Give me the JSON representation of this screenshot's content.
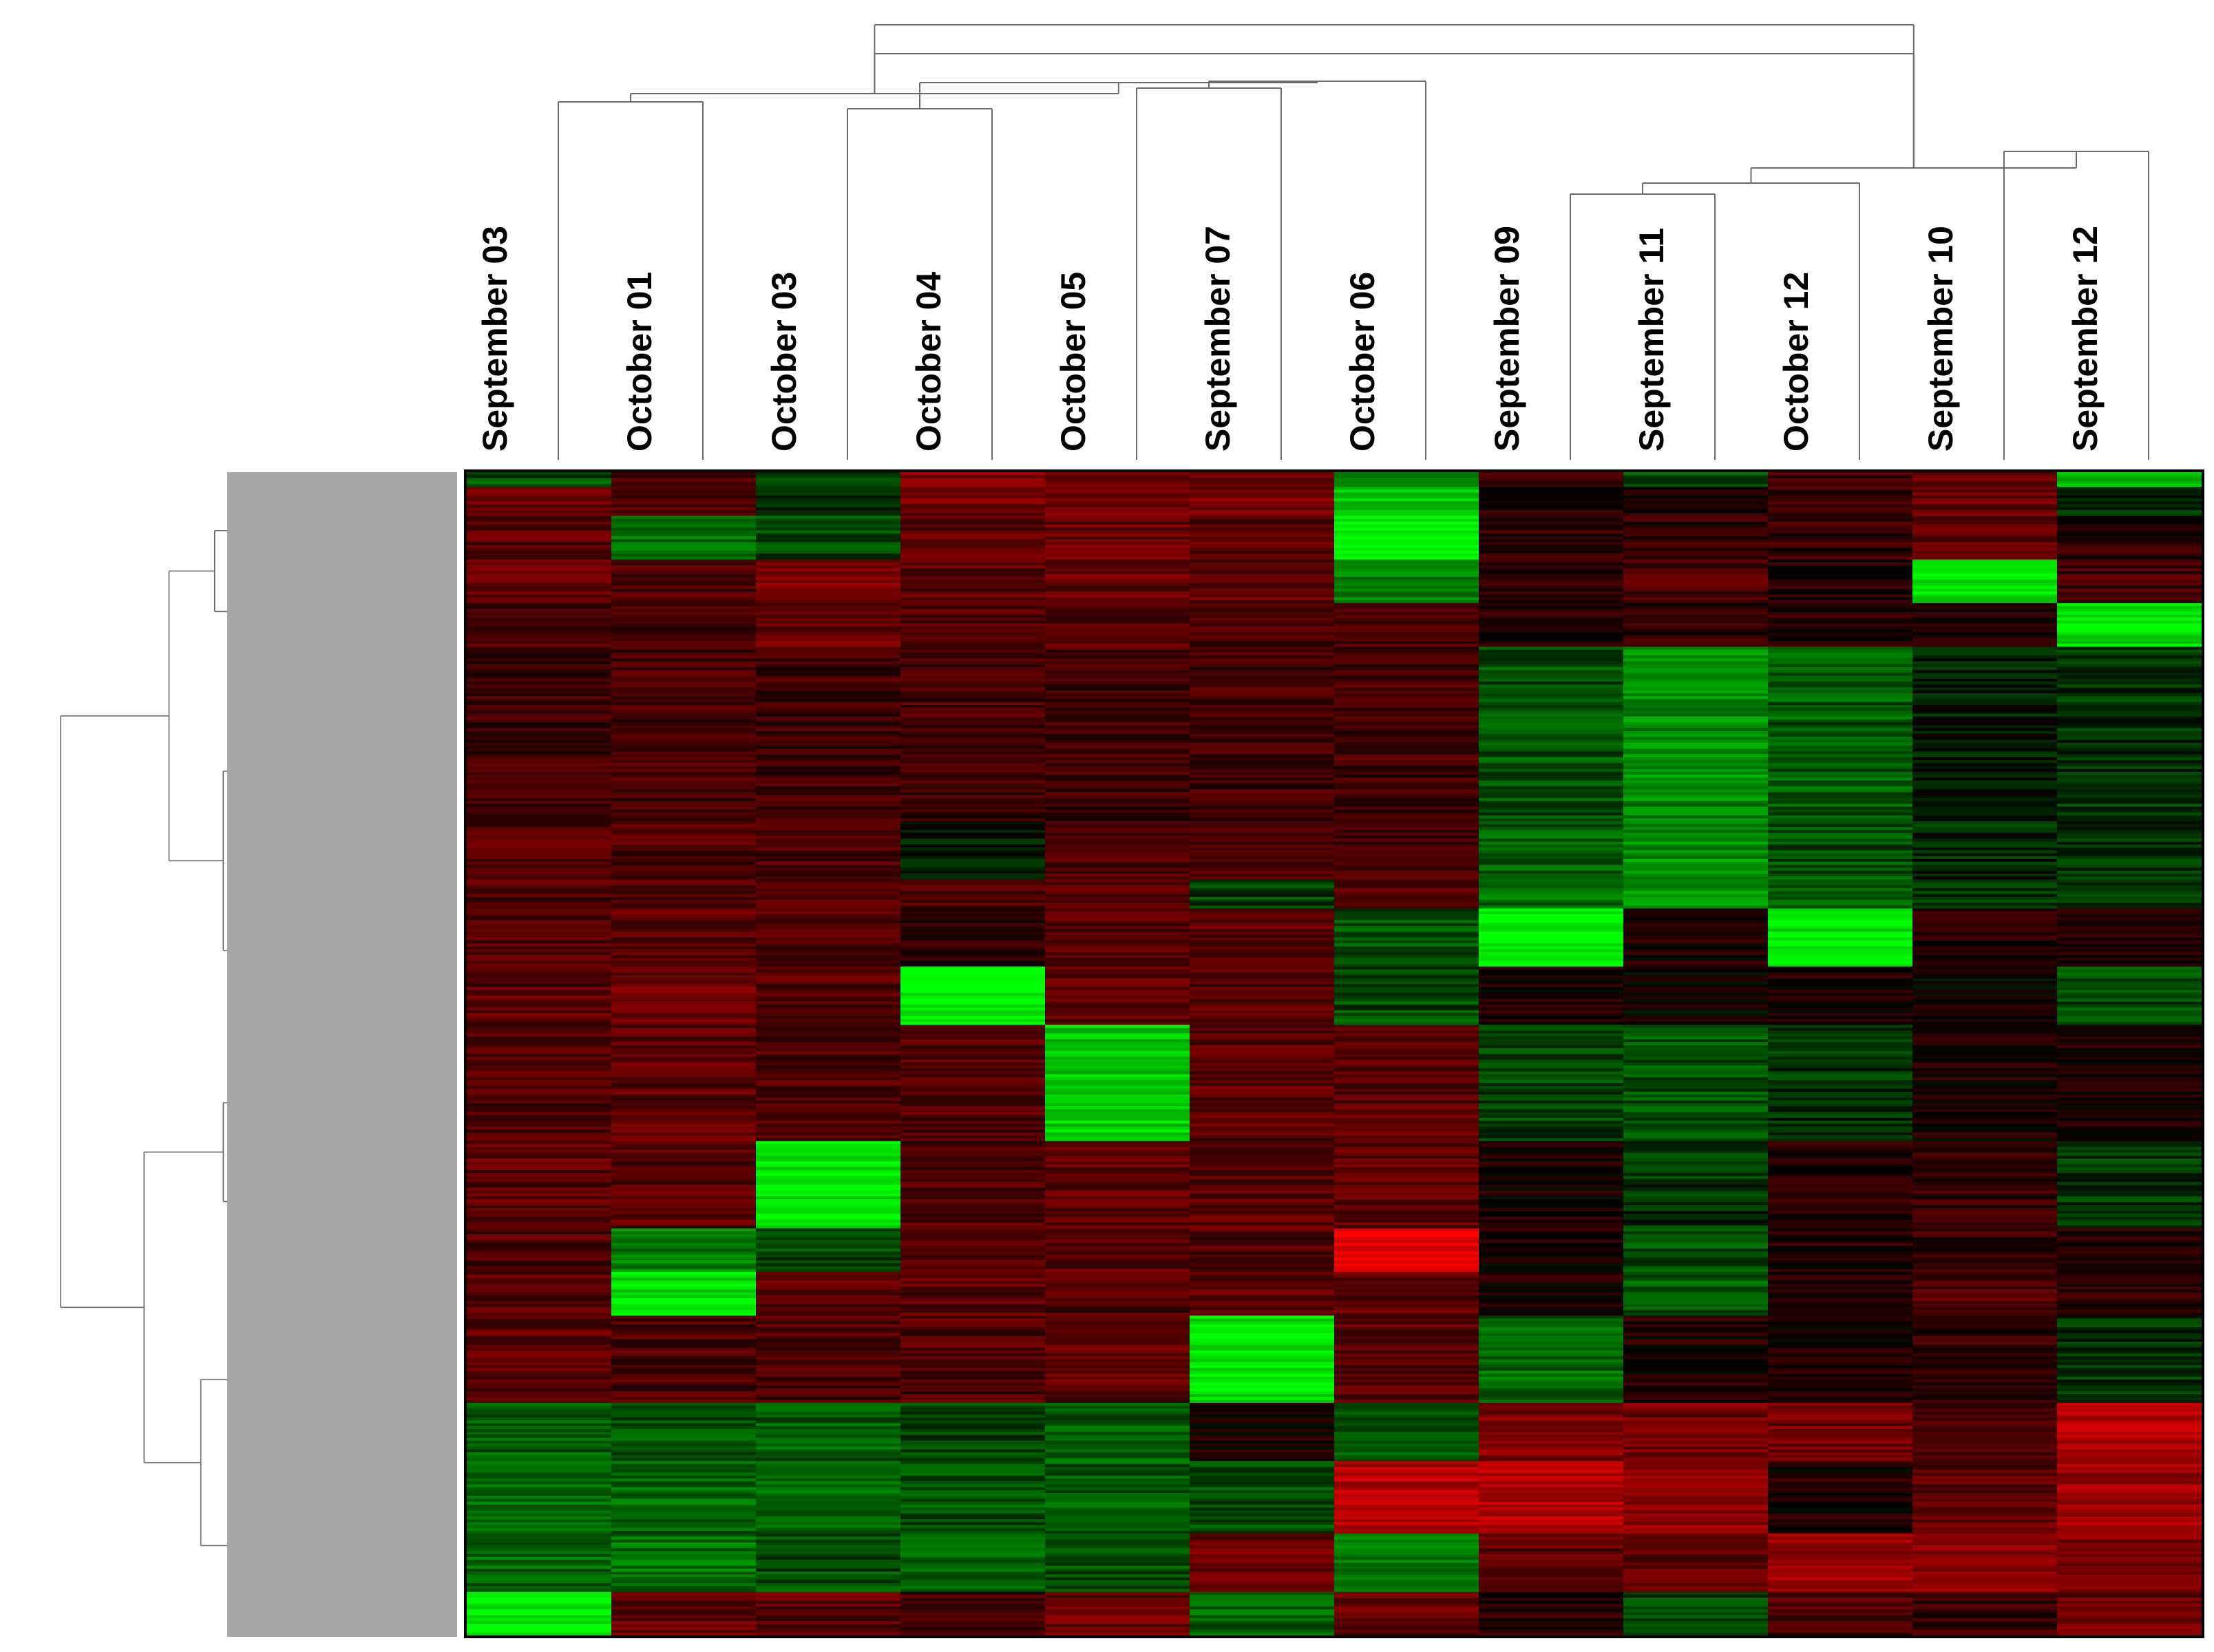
{
  "chart_data": {
    "type": "heatmap",
    "title": "",
    "xlabel": "",
    "ylabel": "",
    "columns": [
      "September 03",
      "October 01",
      "October 03",
      "October 04",
      "October 05",
      "September 07",
      "October 06",
      "September 09",
      "September 11",
      "October 12",
      "September 10",
      "September 12"
    ],
    "row_count": 400,
    "color_scale": {
      "low": "#00ff00",
      "mid": "#000000",
      "high": "#ff0000"
    },
    "value_range": [
      -1,
      1
    ],
    "column_dendrogram": true,
    "row_dendrogram": true,
    "legend": "none",
    "grid": false,
    "row_blocks": [
      {
        "rows": [
          0,
          4
        ],
        "values": [
          -0.3,
          0.3,
          -0.2,
          0.5,
          0.45,
          0.45,
          -0.6,
          0.2,
          -0.3,
          0.25,
          0.4,
          -0.7
        ]
      },
      {
        "rows": [
          5,
          14
        ],
        "values": [
          0.4,
          0.3,
          -0.2,
          0.45,
          0.45,
          0.45,
          -0.8,
          0.1,
          0.15,
          0.25,
          0.4,
          -0.2
        ]
      },
      {
        "rows": [
          15,
          29
        ],
        "values": [
          0.35,
          -0.4,
          -0.3,
          0.35,
          0.4,
          0.35,
          -0.95,
          0.2,
          0.2,
          0.2,
          0.35,
          0.15
        ]
      },
      {
        "rows": [
          30,
          44
        ],
        "values": [
          0.35,
          0.3,
          0.5,
          0.35,
          0.4,
          0.35,
          -0.45,
          0.2,
          0.3,
          0.15,
          -0.9,
          0.25
        ]
      },
      {
        "rows": [
          45,
          59
        ],
        "values": [
          0.3,
          0.3,
          0.4,
          0.3,
          0.35,
          0.3,
          0.3,
          0.15,
          0.2,
          0.15,
          0.1,
          -0.9
        ]
      },
      {
        "rows": [
          60,
          119
        ],
        "values": [
          0.25,
          0.25,
          0.25,
          0.25,
          0.25,
          0.25,
          0.25,
          -0.3,
          -0.55,
          -0.35,
          -0.1,
          -0.2
        ]
      },
      {
        "rows": [
          120,
          139
        ],
        "values": [
          0.3,
          0.3,
          0.3,
          -0.1,
          0.3,
          0.3,
          0.3,
          -0.35,
          -0.55,
          -0.3,
          -0.15,
          -0.2
        ]
      },
      {
        "rows": [
          140,
          149
        ],
        "values": [
          0.3,
          0.3,
          0.3,
          0.3,
          0.3,
          -0.25,
          0.3,
          -0.4,
          -0.55,
          -0.3,
          -0.2,
          -0.25
        ]
      },
      {
        "rows": [
          150,
          169
        ],
        "values": [
          0.3,
          0.35,
          0.3,
          0.2,
          0.35,
          0.35,
          -0.3,
          -0.95,
          0.1,
          -0.9,
          0.15,
          0.1
        ]
      },
      {
        "rows": [
          170,
          189
        ],
        "values": [
          0.35,
          0.4,
          0.3,
          -1.0,
          0.35,
          0.35,
          -0.3,
          0.1,
          0.05,
          0.1,
          0.05,
          -0.3
        ]
      },
      {
        "rows": [
          190,
          229
        ],
        "values": [
          0.3,
          0.35,
          0.3,
          0.3,
          -0.8,
          0.35,
          0.35,
          -0.25,
          -0.3,
          -0.2,
          0.1,
          0.1
        ]
      },
      {
        "rows": [
          230,
          259
        ],
        "values": [
          0.35,
          0.35,
          -0.9,
          0.3,
          0.35,
          0.35,
          0.35,
          0.1,
          -0.2,
          0.15,
          0.2,
          -0.2
        ]
      },
      {
        "rows": [
          260,
          274
        ],
        "values": [
          0.3,
          -0.5,
          -0.3,
          0.3,
          0.35,
          0.3,
          0.9,
          0.1,
          -0.3,
          0.15,
          0.2,
          0.15
        ]
      },
      {
        "rows": [
          275,
          289
        ],
        "values": [
          0.35,
          -0.9,
          0.35,
          0.35,
          0.3,
          0.35,
          0.35,
          0.1,
          -0.35,
          0.1,
          0.3,
          0.2
        ]
      },
      {
        "rows": [
          290,
          319
        ],
        "values": [
          0.35,
          0.3,
          0.3,
          0.3,
          0.35,
          -0.9,
          0.35,
          -0.4,
          0.1,
          0.1,
          0.2,
          -0.2
        ]
      },
      {
        "rows": [
          320,
          339
        ],
        "values": [
          -0.35,
          -0.3,
          -0.35,
          -0.25,
          -0.35,
          0.1,
          -0.35,
          0.5,
          0.45,
          0.45,
          0.3,
          0.7
        ]
      },
      {
        "rows": [
          340,
          364
        ],
        "values": [
          -0.4,
          -0.4,
          -0.4,
          -0.3,
          -0.35,
          -0.3,
          0.7,
          0.7,
          0.55,
          0.1,
          0.35,
          0.6
        ]
      },
      {
        "rows": [
          365,
          384
        ],
        "values": [
          -0.4,
          -0.45,
          -0.3,
          -0.35,
          -0.3,
          0.4,
          -0.45,
          0.35,
          0.35,
          0.6,
          0.55,
          0.5
        ]
      },
      {
        "rows": [
          385,
          399
        ],
        "values": [
          -0.95,
          0.4,
          0.35,
          0.3,
          0.4,
          -0.4,
          0.4,
          0.15,
          -0.25,
          0.3,
          0.2,
          0.4
        ]
      }
    ]
  }
}
